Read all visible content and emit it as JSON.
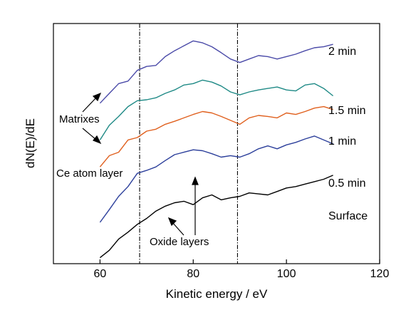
{
  "chart_data": {
    "type": "line",
    "xlabel": "Kinetic energy / eV",
    "ylabel": "dN(E)/dE",
    "xlim": [
      50,
      120
    ],
    "xticks": [
      60,
      80,
      100,
      120
    ],
    "grid": false,
    "colors": {
      "2 min": "#4a4aa8",
      "1.5 min": "#1f8a86",
      "1 min": "#e0601e",
      "0.5 min": "#2c3f9b",
      "Surface": "#000000",
      "reference": "#000000"
    },
    "reference_lines_x": [
      68.5,
      89.5
    ],
    "series": [
      {
        "name": "2 min",
        "x": [
          60,
          62,
          64,
          66,
          68,
          70,
          72,
          74,
          76,
          78,
          80,
          82,
          84,
          86,
          88,
          90,
          92,
          94,
          96,
          98,
          100,
          102,
          104,
          106,
          108,
          110
        ],
        "y": [
          3.15,
          3.35,
          3.55,
          3.6,
          3.82,
          3.9,
          3.92,
          4.1,
          4.22,
          4.32,
          4.42,
          4.38,
          4.3,
          4.18,
          4.05,
          3.98,
          4.05,
          4.12,
          4.1,
          4.05,
          4.1,
          4.15,
          4.22,
          4.28,
          4.3,
          4.35
        ]
      },
      {
        "name": "1.5 min",
        "x": [
          60,
          62,
          64,
          66,
          68,
          70,
          72,
          74,
          76,
          78,
          80,
          82,
          84,
          86,
          88,
          90,
          92,
          94,
          96,
          98,
          100,
          102,
          104,
          106,
          108,
          110
        ],
        "y": [
          2.4,
          2.7,
          2.88,
          3.08,
          3.2,
          3.22,
          3.26,
          3.35,
          3.42,
          3.52,
          3.55,
          3.62,
          3.58,
          3.5,
          3.38,
          3.32,
          3.38,
          3.42,
          3.45,
          3.48,
          3.42,
          3.4,
          3.52,
          3.55,
          3.45,
          3.3
        ]
      },
      {
        "name": "1 min",
        "x": [
          60,
          62,
          64,
          66,
          68,
          70,
          72,
          74,
          76,
          78,
          80,
          82,
          84,
          86,
          88,
          90,
          92,
          94,
          96,
          98,
          100,
          102,
          104,
          106,
          108,
          110
        ],
        "y": [
          1.85,
          2.08,
          2.15,
          2.4,
          2.45,
          2.58,
          2.62,
          2.72,
          2.78,
          2.85,
          2.92,
          2.98,
          2.95,
          2.88,
          2.8,
          2.72,
          2.85,
          2.9,
          2.88,
          2.85,
          2.95,
          2.92,
          2.98,
          3.05,
          3.08,
          3.02
        ]
      },
      {
        "name": "0.5 min",
        "x": [
          60,
          62,
          64,
          66,
          68,
          70,
          72,
          74,
          76,
          78,
          80,
          82,
          84,
          86,
          88,
          90,
          92,
          94,
          96,
          98,
          100,
          102,
          104,
          106,
          108,
          110
        ],
        "y": [
          0.72,
          0.98,
          1.25,
          1.45,
          1.72,
          1.78,
          1.85,
          1.98,
          2.1,
          2.15,
          2.2,
          2.18,
          2.12,
          2.05,
          2.08,
          2.05,
          2.12,
          2.22,
          2.28,
          2.22,
          2.3,
          2.35,
          2.42,
          2.48,
          2.4,
          2.32
        ]
      },
      {
        "name": "Surface",
        "x": [
          60,
          62,
          64,
          66,
          68,
          70,
          72,
          74,
          76,
          78,
          80,
          82,
          84,
          86,
          88,
          90,
          92,
          94,
          96,
          98,
          100,
          102,
          104,
          106,
          108,
          110
        ],
        "y": [
          0.0,
          0.15,
          0.38,
          0.52,
          0.68,
          0.8,
          0.95,
          1.05,
          1.12,
          1.15,
          1.08,
          1.22,
          1.28,
          1.18,
          1.22,
          1.25,
          1.32,
          1.3,
          1.28,
          1.35,
          1.42,
          1.45,
          1.5,
          1.55,
          1.6,
          1.68
        ]
      }
    ],
    "annotations": [
      "Matrixes",
      "Ce atom layer",
      "Oxide layers"
    ]
  }
}
